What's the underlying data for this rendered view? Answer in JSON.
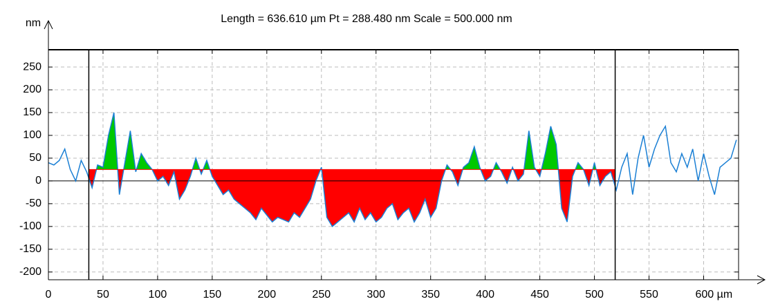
{
  "chart_data": {
    "type": "line",
    "title": "Length = 636.610 µm Pt = 288.480 nm Scale = 500.000 nm",
    "y_label": "nm",
    "xlim": [
      0,
      632
    ],
    "ylim": [
      -217,
      288
    ],
    "xticks": [
      0,
      50,
      100,
      150,
      200,
      250,
      300,
      350,
      400,
      450,
      500,
      550,
      {
        "value": 600,
        "label": "600 µm"
      }
    ],
    "yticks": [
      -200,
      -150,
      -100,
      -50,
      0,
      50,
      100,
      150,
      200,
      250
    ],
    "grid": true,
    "reference_level": 25,
    "cursors": [
      37,
      519
    ],
    "fill_above": "#00c800",
    "fill_below": "#ff0000",
    "x": [
      0,
      5,
      10,
      15,
      20,
      25,
      30,
      35,
      40,
      45,
      50,
      55,
      60,
      65,
      70,
      75,
      80,
      85,
      90,
      95,
      100,
      105,
      110,
      115,
      120,
      125,
      130,
      135,
      140,
      145,
      150,
      155,
      160,
      165,
      170,
      175,
      180,
      185,
      190,
      195,
      200,
      205,
      210,
      215,
      220,
      225,
      230,
      235,
      240,
      245,
      250,
      255,
      260,
      265,
      270,
      275,
      280,
      285,
      290,
      295,
      300,
      305,
      310,
      315,
      320,
      325,
      330,
      335,
      340,
      345,
      350,
      355,
      360,
      365,
      370,
      375,
      380,
      385,
      390,
      395,
      400,
      405,
      410,
      415,
      420,
      425,
      430,
      435,
      440,
      445,
      450,
      455,
      460,
      465,
      470,
      475,
      480,
      485,
      490,
      495,
      500,
      505,
      510,
      515,
      520,
      525,
      530,
      535,
      540,
      545,
      550,
      555,
      560,
      565,
      570,
      575,
      580,
      585,
      590,
      595,
      600,
      605,
      610,
      615,
      620,
      625,
      630
    ],
    "series": [
      {
        "color": "#1a7fd4",
        "values": [
          40,
          35,
          45,
          70,
          25,
          0,
          45,
          20,
          -15,
          35,
          30,
          100,
          150,
          -30,
          40,
          110,
          20,
          60,
          40,
          25,
          0,
          10,
          -10,
          20,
          -40,
          -20,
          10,
          50,
          15,
          45,
          10,
          -10,
          -30,
          -20,
          -40,
          -50,
          -60,
          -70,
          -85,
          -60,
          -75,
          -90,
          -80,
          -85,
          -90,
          -70,
          -80,
          -60,
          -40,
          0,
          30,
          -80,
          -100,
          -90,
          -80,
          -70,
          -90,
          -60,
          -85,
          -70,
          -90,
          -80,
          -60,
          -50,
          -85,
          -70,
          -60,
          -90,
          -70,
          -40,
          -80,
          -60,
          0,
          35,
          20,
          -10,
          30,
          40,
          75,
          30,
          0,
          10,
          40,
          20,
          -5,
          30,
          0,
          15,
          110,
          30,
          10,
          60,
          120,
          80,
          -60,
          -90,
          10,
          40,
          25,
          -10,
          40,
          -10,
          10,
          20,
          -20,
          30,
          60,
          -30,
          50,
          100,
          30,
          70,
          100,
          120,
          40,
          20,
          60,
          30,
          70,
          0,
          60,
          10,
          -30,
          30,
          40,
          50,
          90
        ]
      }
    ]
  }
}
